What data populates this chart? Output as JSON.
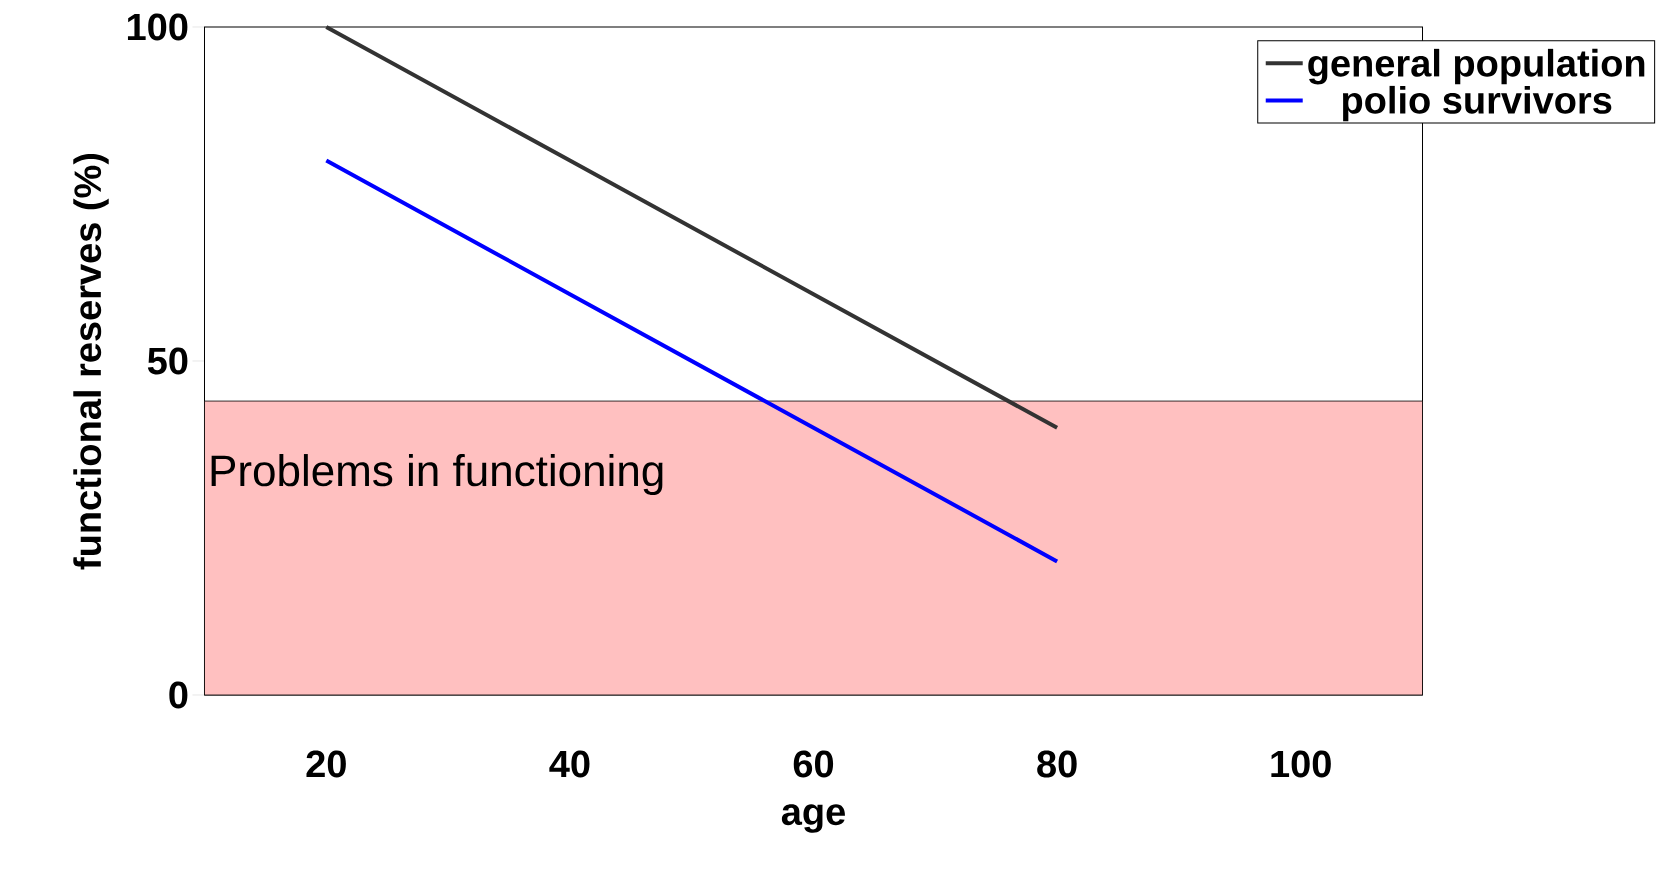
{
  "chart_data": {
    "type": "line",
    "xlabel": "age",
    "ylabel": "functional reserves (%)",
    "x": [
      20,
      40,
      60,
      80
    ],
    "series": [
      {
        "name": "general population",
        "color": "#333333",
        "values": [
          100,
          80,
          60,
          40
        ]
      },
      {
        "name": "polio survivors",
        "color": "#0000ff",
        "values": [
          80,
          60,
          40,
          20
        ]
      }
    ],
    "xlim": [
      10,
      110
    ],
    "ylim": [
      0,
      100
    ],
    "xticks": [
      20,
      40,
      60,
      80,
      100
    ],
    "yticks": [
      0,
      50,
      100
    ],
    "bands": [
      {
        "axis": "y",
        "from": 0,
        "to": 44,
        "label": "Problems in functioning",
        "color": "#ffc0c0"
      }
    ],
    "grid": false,
    "legend": "top right",
    "line_style": "solid"
  }
}
